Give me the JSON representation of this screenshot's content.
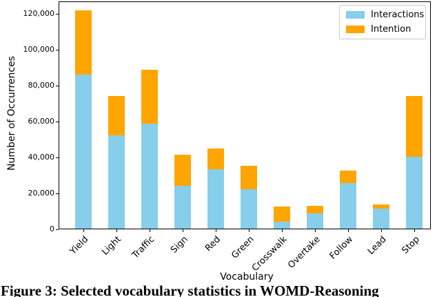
{
  "figure": {
    "caption": "Figure 3: Selected vocabulary statistics in WOMD-Reasoning"
  },
  "chart_data": {
    "type": "bar",
    "stacked": true,
    "title": "",
    "xlabel": "Vocabulary",
    "ylabel": "Number of Occurrences",
    "categories": [
      "Yield",
      "Light",
      "Traffic",
      "Sign",
      "Red",
      "Green",
      "Crosswalk",
      "Overtake",
      "Follow",
      "Lead",
      "Stop"
    ],
    "series": [
      {
        "name": "Interactions",
        "color": "#87CEEB",
        "values": [
          86000,
          52000,
          58500,
          24000,
          33000,
          22000,
          4000,
          8500,
          25500,
          11000,
          40000
        ]
      },
      {
        "name": "Intention",
        "color": "#FFA500",
        "values": [
          35500,
          22000,
          30000,
          17000,
          11500,
          13000,
          8300,
          4200,
          6800,
          2500,
          34000
        ]
      }
    ],
    "totals": [
      121500,
      74000,
      88500,
      41000,
      44500,
      35000,
      12300,
      12700,
      32300,
      13500,
      74000
    ],
    "ylim": [
      0,
      126600
    ],
    "yticks": [
      0,
      20000,
      40000,
      60000,
      80000,
      100000,
      120000
    ],
    "ytick_labels": [
      "0",
      "20,000",
      "40,000",
      "60,000",
      "80,000",
      "100,000",
      "120,000"
    ],
    "legend_position": "upper right",
    "grid": false
  }
}
